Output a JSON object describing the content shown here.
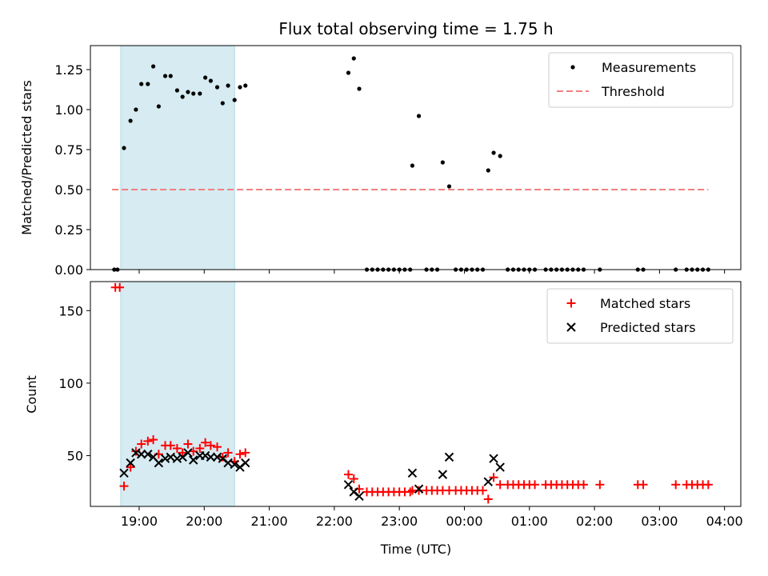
{
  "chart_data": [
    {
      "type": "scatter",
      "title": "Flux total observing time = 1.75 h",
      "xlabel": "",
      "ylabel": "Matched/Predicted stars",
      "ylim": [
        0,
        1.4
      ],
      "xlim": [
        "18:15",
        "04:15"
      ],
      "x_ticks": [
        "19:00",
        "20:00",
        "21:00",
        "22:00",
        "23:00",
        "00:00",
        "01:00",
        "02:00",
        "03:00",
        "04:00"
      ],
      "x_ticklabels_visible": false,
      "y_ticks": [
        "0.00",
        "0.25",
        "0.50",
        "0.75",
        "1.00",
        "1.25"
      ],
      "highlight_span": [
        "18:43",
        "20:28"
      ],
      "legend": [
        "Measurements",
        "Threshold"
      ],
      "legend_location": "upper right",
      "threshold": {
        "name": "Threshold",
        "y": 0.5,
        "x_range": [
          "18:35",
          "03:45"
        ],
        "color": "#f08080",
        "style": "dashed"
      },
      "series": [
        {
          "name": "Measurements",
          "marker": "dot",
          "color": "#000000",
          "points": [
            [
              "18:37",
              0
            ],
            [
              "18:40",
              0
            ],
            [
              "18:46",
              0.76
            ],
            [
              "18:52",
              0.93
            ],
            [
              "18:57",
              1.0
            ],
            [
              "19:02",
              1.16
            ],
            [
              "19:08",
              1.16
            ],
            [
              "19:13",
              1.27
            ],
            [
              "19:18",
              1.02
            ],
            [
              "19:24",
              1.21
            ],
            [
              "19:29",
              1.21
            ],
            [
              "19:35",
              1.12
            ],
            [
              "19:40",
              1.08
            ],
            [
              "19:45",
              1.11
            ],
            [
              "19:50",
              1.1
            ],
            [
              "19:56",
              1.1
            ],
            [
              "20:01",
              1.2
            ],
            [
              "20:06",
              1.18
            ],
            [
              "20:12",
              1.14
            ],
            [
              "20:17",
              1.04
            ],
            [
              "20:22",
              1.15
            ],
            [
              "20:28",
              1.06
            ],
            [
              "20:33",
              1.14
            ],
            [
              "20:38",
              1.15
            ],
            [
              "22:13",
              1.23
            ],
            [
              "22:18",
              1.32
            ],
            [
              "22:23",
              1.13
            ],
            [
              "22:30",
              0
            ],
            [
              "22:35",
              0
            ],
            [
              "22:40",
              0
            ],
            [
              "22:45",
              0
            ],
            [
              "22:50",
              0
            ],
            [
              "22:55",
              0
            ],
            [
              "23:00",
              0
            ],
            [
              "23:05",
              0
            ],
            [
              "23:10",
              0
            ],
            [
              "23:12",
              0.65
            ],
            [
              "23:18",
              0.96
            ],
            [
              "23:25",
              0
            ],
            [
              "23:30",
              0
            ],
            [
              "23:35",
              0
            ],
            [
              "23:40",
              0.67
            ],
            [
              "23:46",
              0.52
            ],
            [
              "23:52",
              0
            ],
            [
              "23:57",
              0
            ],
            [
              "00:02",
              0
            ],
            [
              "00:07",
              0
            ],
            [
              "00:12",
              0
            ],
            [
              "00:17",
              0
            ],
            [
              "00:22",
              0.62
            ],
            [
              "00:27",
              0.73
            ],
            [
              "00:33",
              0.71
            ],
            [
              "00:40",
              0
            ],
            [
              "00:45",
              0
            ],
            [
              "00:50",
              0
            ],
            [
              "00:55",
              0
            ],
            [
              "01:00",
              0
            ],
            [
              "01:05",
              0
            ],
            [
              "01:15",
              0
            ],
            [
              "01:20",
              0
            ],
            [
              "01:25",
              0
            ],
            [
              "01:30",
              0
            ],
            [
              "01:35",
              0
            ],
            [
              "01:40",
              0
            ],
            [
              "01:45",
              0
            ],
            [
              "01:50",
              0
            ],
            [
              "02:05",
              0
            ],
            [
              "02:40",
              0
            ],
            [
              "02:45",
              0
            ],
            [
              "03:15",
              0
            ],
            [
              "03:25",
              0
            ],
            [
              "03:30",
              0
            ],
            [
              "03:35",
              0
            ],
            [
              "03:40",
              0
            ],
            [
              "03:45",
              0
            ]
          ]
        }
      ]
    },
    {
      "type": "scatter",
      "title": "",
      "xlabel": "Time (UTC)",
      "ylabel": "Count",
      "ylim": [
        15,
        170
      ],
      "xlim": [
        "18:15",
        "04:15"
      ],
      "x_ticks": [
        "19:00",
        "20:00",
        "21:00",
        "22:00",
        "23:00",
        "00:00",
        "01:00",
        "02:00",
        "03:00",
        "04:00"
      ],
      "x_ticklabels_visible": true,
      "y_ticks": [
        "50",
        "100",
        "150"
      ],
      "highlight_span": [
        "18:43",
        "20:28"
      ],
      "legend": [
        "Matched stars",
        "Predicted stars"
      ],
      "legend_location": "upper right",
      "series": [
        {
          "name": "Matched stars",
          "marker": "plus",
          "color": "#ff0000",
          "points": [
            [
              "18:38",
              166
            ],
            [
              "18:42",
              166
            ],
            [
              "18:46",
              29
            ],
            [
              "18:52",
              42
            ],
            [
              "18:57",
              53
            ],
            [
              "19:02",
              58
            ],
            [
              "19:08",
              60
            ],
            [
              "19:13",
              61
            ],
            [
              "19:18",
              51
            ],
            [
              "19:24",
              57
            ],
            [
              "19:29",
              57
            ],
            [
              "19:35",
              55
            ],
            [
              "19:40",
              52
            ],
            [
              "19:45",
              58
            ],
            [
              "19:50",
              53
            ],
            [
              "19:56",
              55
            ],
            [
              "20:01",
              59
            ],
            [
              "20:06",
              57
            ],
            [
              "20:12",
              56
            ],
            [
              "20:17",
              49
            ],
            [
              "20:22",
              52
            ],
            [
              "20:28",
              46
            ],
            [
              "20:33",
              51
            ],
            [
              "20:38",
              52
            ],
            [
              "22:13",
              37
            ],
            [
              "22:18",
              34
            ],
            [
              "22:23",
              27
            ],
            [
              "22:30",
              25
            ],
            [
              "22:35",
              25
            ],
            [
              "22:40",
              25
            ],
            [
              "22:45",
              25
            ],
            [
              "22:50",
              25
            ],
            [
              "22:55",
              25
            ],
            [
              "23:00",
              25
            ],
            [
              "23:05",
              25
            ],
            [
              "23:10",
              25
            ],
            [
              "23:12",
              26
            ],
            [
              "23:18",
              26
            ],
            [
              "23:25",
              26
            ],
            [
              "23:30",
              26
            ],
            [
              "23:35",
              26
            ],
            [
              "23:40",
              26
            ],
            [
              "23:46",
              26
            ],
            [
              "23:52",
              26
            ],
            [
              "23:57",
              26
            ],
            [
              "00:02",
              26
            ],
            [
              "00:07",
              26
            ],
            [
              "00:12",
              26
            ],
            [
              "00:17",
              26
            ],
            [
              "00:22",
              20
            ],
            [
              "00:27",
              35
            ],
            [
              "00:33",
              30
            ],
            [
              "00:40",
              30
            ],
            [
              "00:45",
              30
            ],
            [
              "00:50",
              30
            ],
            [
              "00:55",
              30
            ],
            [
              "01:00",
              30
            ],
            [
              "01:05",
              30
            ],
            [
              "01:15",
              30
            ],
            [
              "01:20",
              30
            ],
            [
              "01:25",
              30
            ],
            [
              "01:30",
              30
            ],
            [
              "01:35",
              30
            ],
            [
              "01:40",
              30
            ],
            [
              "01:45",
              30
            ],
            [
              "01:50",
              30
            ],
            [
              "02:05",
              30
            ],
            [
              "02:40",
              30
            ],
            [
              "02:45",
              30
            ],
            [
              "03:15",
              30
            ],
            [
              "03:25",
              30
            ],
            [
              "03:30",
              30
            ],
            [
              "03:35",
              30
            ],
            [
              "03:40",
              30
            ],
            [
              "03:45",
              30
            ]
          ]
        },
        {
          "name": "Predicted stars",
          "marker": "x",
          "color": "#000000",
          "points": [
            [
              "18:46",
              38
            ],
            [
              "18:52",
              45
            ],
            [
              "18:57",
              52
            ],
            [
              "19:02",
              51
            ],
            [
              "19:08",
              51
            ],
            [
              "19:13",
              49
            ],
            [
              "19:18",
              45
            ],
            [
              "19:24",
              48
            ],
            [
              "19:29",
              49
            ],
            [
              "19:35",
              48
            ],
            [
              "19:40",
              49
            ],
            [
              "19:45",
              52
            ],
            [
              "19:50",
              47
            ],
            [
              "19:56",
              50
            ],
            [
              "20:01",
              50
            ],
            [
              "20:06",
              49
            ],
            [
              "20:12",
              49
            ],
            [
              "20:17",
              48
            ],
            [
              "20:22",
              45
            ],
            [
              "20:28",
              44
            ],
            [
              "20:33",
              42
            ],
            [
              "20:38",
              45
            ],
            [
              "22:13",
              30
            ],
            [
              "22:18",
              25
            ],
            [
              "22:23",
              22
            ],
            [
              "23:12",
              38
            ],
            [
              "23:18",
              27
            ],
            [
              "23:40",
              37
            ],
            [
              "23:46",
              49
            ],
            [
              "00:22",
              32
            ],
            [
              "00:27",
              48
            ],
            [
              "00:33",
              42
            ]
          ]
        }
      ]
    }
  ]
}
